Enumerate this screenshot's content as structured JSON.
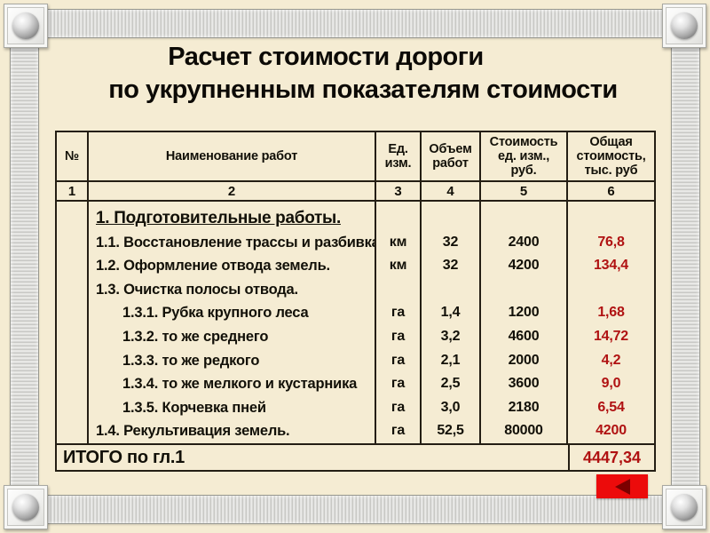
{
  "slide": {
    "title_line1": "Расчет стоимости дороги",
    "title_line2": "по укрупненным показателям стоимости"
  },
  "table": {
    "headers": [
      "№",
      "Наименование работ",
      "Ед.\nизм.",
      "Объем\nработ",
      "Стоимость\nед. изм.,\nруб.",
      "Общая\nстоимость,\nтыс. руб"
    ],
    "col_nums": [
      "1",
      "2",
      "3",
      "4",
      "5",
      "6"
    ],
    "rows": [
      {
        "name": "1. Подготовительные работы."
      },
      {
        "name": "1.1. Восстановление трассы и разбивка.",
        "unit": "км",
        "volume": "32",
        "unit_cost": "2400",
        "total": "76,8"
      },
      {
        "name": "1.2. Оформление отвода земель.",
        "unit": "км",
        "volume": "32",
        "unit_cost": "4200",
        "total": "134,4"
      },
      {
        "name": "1.3. Очистка полосы отвода."
      },
      {
        "name": "1.3.1. Рубка крупного леса",
        "unit": "га",
        "volume": "1,4",
        "unit_cost": "1200",
        "total": "1,68"
      },
      {
        "name": "1.3.2. то же среднего",
        "unit": "га",
        "volume": "3,2",
        "unit_cost": "4600",
        "total": "14,72"
      },
      {
        "name": "1.3.3. то же редкого",
        "unit": "га",
        "volume": "2,1",
        "unit_cost": "2000",
        "total": "4,2"
      },
      {
        "name": "1.3.4. то же мелкого и кустарника",
        "unit": "га",
        "volume": "2,5",
        "unit_cost": "3600",
        "total": "9,0"
      },
      {
        "name": "1.3.5. Корчевка пней",
        "unit": "га",
        "volume": "3,0",
        "unit_cost": "2180",
        "total": "6,54"
      },
      {
        "name": "1.4. Рекультивация земель.",
        "unit": "га",
        "volume": "52,5",
        "unit_cost": "80000",
        "total": "4200"
      }
    ],
    "footer": {
      "label": "ИТОГО по гл.1",
      "total": "4447,34"
    }
  },
  "icons": {
    "back": "back-arrow-icon",
    "screw": "screw-icon"
  },
  "colors": {
    "background": "#f5ecd3",
    "table_line": "#241e14",
    "accent_red": "#b01212",
    "button_red": "#ec0b0b",
    "button_arrow": "#7c0000",
    "frame_metal": "#d5d5d2"
  }
}
